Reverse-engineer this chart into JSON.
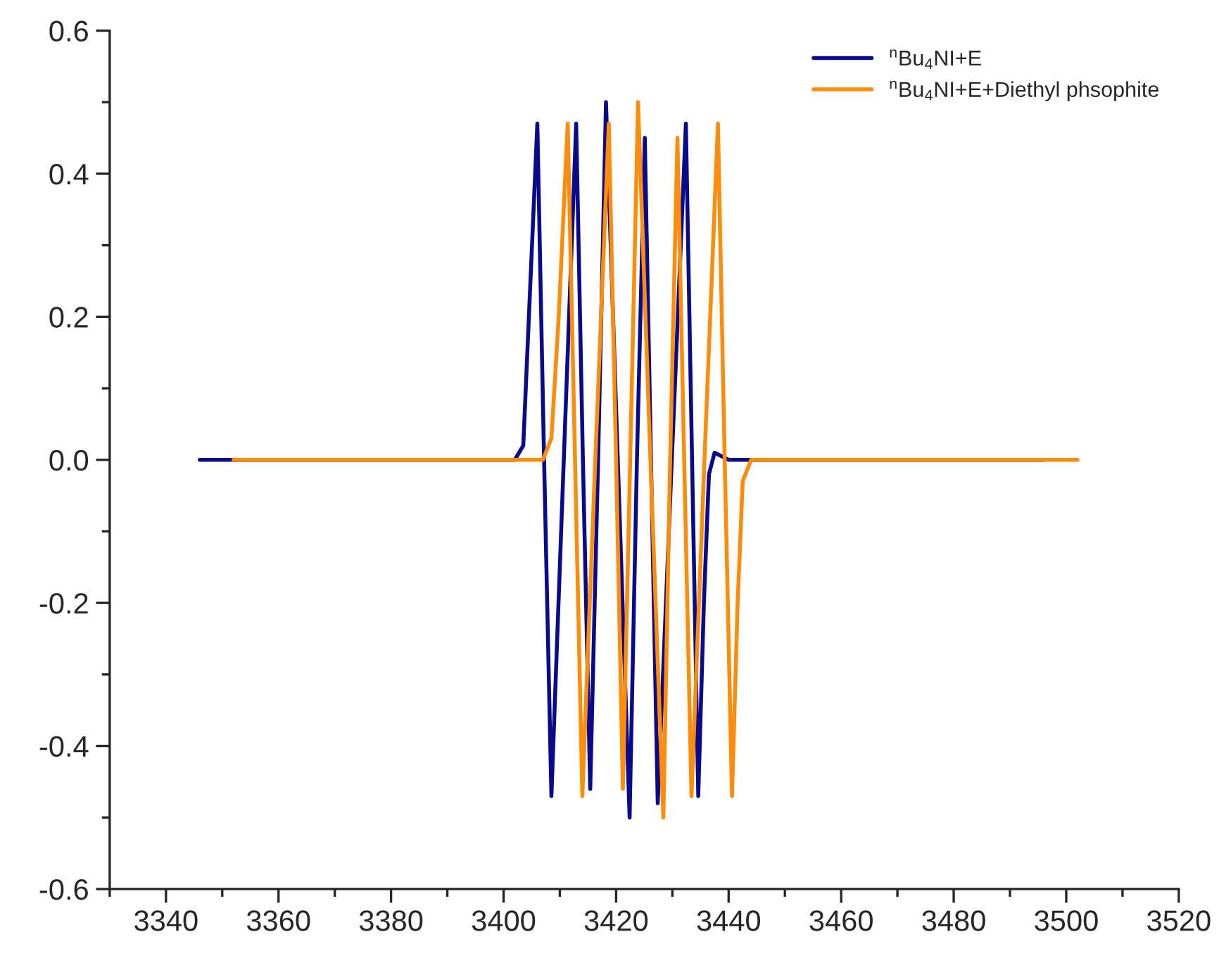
{
  "chart_data": {
    "type": "line",
    "xlim": [
      3330,
      3520
    ],
    "ylim": [
      -0.6,
      0.6
    ],
    "xticks": [
      {
        "value": 3330,
        "label": null
      },
      3340,
      {
        "value": 3350,
        "label": null
      },
      3360,
      {
        "value": 3370,
        "label": null
      },
      3380,
      {
        "value": 3390,
        "label": null
      },
      3400,
      {
        "value": 3410,
        "label": null
      },
      3420,
      {
        "value": 3430,
        "label": null
      },
      3440,
      {
        "value": 3450,
        "label": null
      },
      3460,
      {
        "value": 3470,
        "label": null
      },
      3480,
      {
        "value": 3490,
        "label": null
      },
      3500,
      {
        "value": 3510,
        "label": null
      },
      3520
    ],
    "yticks": [
      {
        "value": -0.6,
        "label": "-0.6"
      },
      {
        "value": -0.5,
        "label": null
      },
      {
        "value": -0.4,
        "label": "-0.4"
      },
      {
        "value": -0.3,
        "label": null
      },
      {
        "value": -0.2,
        "label": "-0.2"
      },
      {
        "value": -0.1,
        "label": null
      },
      {
        "value": 0,
        "label": "0.0"
      },
      {
        "value": 0.1,
        "label": null
      },
      {
        "value": 0.2,
        "label": "0.2"
      },
      {
        "value": 0.3,
        "label": null
      },
      {
        "value": 0.4,
        "label": "0.4"
      },
      {
        "value": 0.5,
        "label": null
      },
      {
        "value": 0.6,
        "label": "0.6"
      }
    ],
    "legend": "top right",
    "grid": false,
    "series": [
      {
        "name": "$^{n}$Bu$_{4}$NI+E",
        "color": "#0a0a8c",
        "x": [
          3346,
          3402,
          3403.5,
          3404.5,
          3406,
          3407.2,
          3408.5,
          3410.7,
          3412.9,
          3414.1,
          3415.4,
          3416.8,
          3418.2,
          3420.3,
          3422.4,
          3423.7,
          3425.1,
          3426.2,
          3427.4,
          3429.9,
          3432.4,
          3433.5,
          3434.6,
          3435.6,
          3436.5,
          3437.5,
          3440,
          3496
        ],
        "values": [
          0,
          0,
          0.02,
          0.2,
          0.47,
          0,
          -0.47,
          0,
          0.47,
          0,
          -0.46,
          0,
          0.5,
          0,
          -0.5,
          0,
          0.45,
          0,
          -0.48,
          0,
          0.47,
          0,
          -0.47,
          -0.2,
          -0.02,
          0.01,
          0,
          0
        ]
      },
      {
        "name": "$^{n}$Bu$_{4}$NI+E+Diethyl phsophite",
        "color": "#ff8c0a",
        "x": [
          3352,
          3407,
          3408.5,
          3409.8,
          3411.4,
          3412.7,
          3414,
          3416.3,
          3418.7,
          3420,
          3421.2,
          3422.5,
          3423.9,
          3426.1,
          3428.4,
          3429.6,
          3430.9,
          3432.1,
          3433.4,
          3435.7,
          3438.1,
          3439.3,
          3440.6,
          3441.6,
          3442.5,
          3444,
          3502
        ],
        "values": [
          0,
          0,
          0.03,
          0.2,
          0.47,
          0,
          -0.47,
          0,
          0.47,
          0,
          -0.46,
          0,
          0.5,
          0,
          -0.5,
          0,
          0.45,
          0,
          -0.47,
          0,
          0.47,
          0,
          -0.47,
          -0.2,
          -0.03,
          0,
          0
        ]
      }
    ]
  }
}
